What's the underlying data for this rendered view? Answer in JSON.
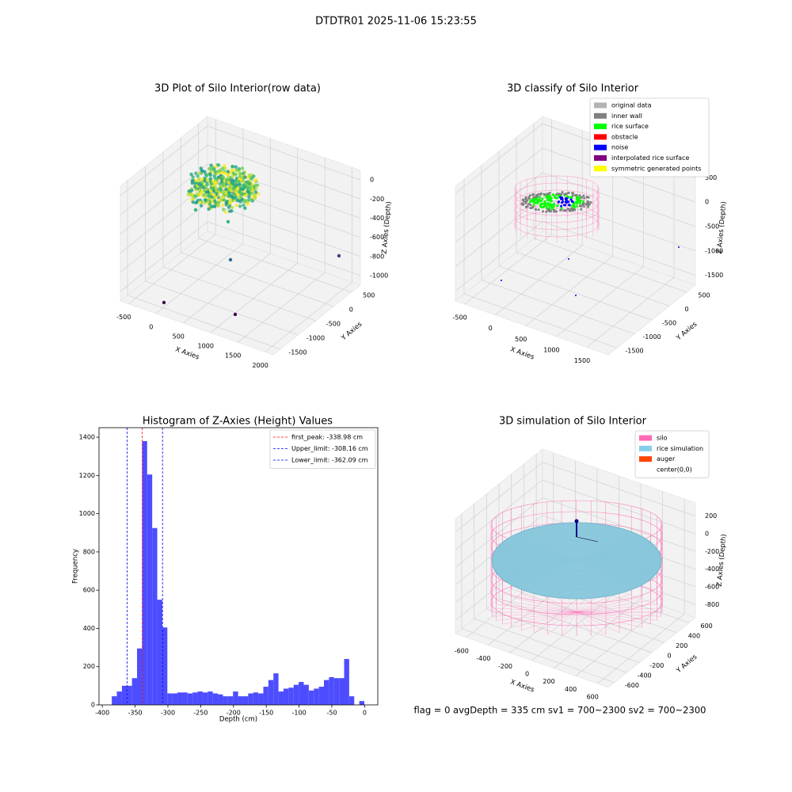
{
  "suptitle": "DTDTR01 2025-11-06 15:23:55",
  "footer": "flag = 0     avgDepth = 335 cm  sv1 = 700~2300  sv2 = 700~2300",
  "chart_data": [
    {
      "type": "scatter3d",
      "title": "3D Plot of Silo Interior(row data)",
      "xlabel": "X Axies",
      "ylabel": "Y Axies",
      "zlabel": "Z Axies (Depth)",
      "xlim": [
        -650,
        2150
      ],
      "ylim": [
        -1700,
        750
      ],
      "zlim": [
        -1100,
        100
      ],
      "xticks": [
        -500,
        0,
        500,
        1000,
        1500,
        2000
      ],
      "yticks": [
        -1500,
        -1000,
        -500,
        0,
        500
      ],
      "zticks": [
        -1000,
        -800,
        -600,
        -400,
        -200,
        0
      ]
    },
    {
      "type": "scatter3d",
      "title": "3D classify of Silo Interior",
      "xlabel": "X Axies",
      "ylabel": "Y Axies",
      "zlabel": "Z Axies (Depth)",
      "xlim": [
        -650,
        1850
      ],
      "ylim": [
        -1750,
        750
      ],
      "zlim": [
        -1700,
        650
      ],
      "xticks": [
        -500,
        0,
        500,
        1000,
        1500
      ],
      "yticks": [
        -1500,
        -1000,
        -500,
        0,
        500
      ],
      "zticks": [
        -1500,
        -1000,
        -500,
        0,
        500
      ],
      "legend": [
        {
          "label": "original data",
          "color": "#b3b3b3"
        },
        {
          "label": "inner wall",
          "color": "#808080"
        },
        {
          "label": "rice surface",
          "color": "#00ff00"
        },
        {
          "label": "obstacle",
          "color": "#ff0000"
        },
        {
          "label": "noise",
          "color": "#0000ff"
        },
        {
          "label": "interpolated rice surface",
          "color": "#800080"
        },
        {
          "label": "symmetric generated points",
          "color": "#ffff00"
        }
      ]
    },
    {
      "type": "histogram",
      "title": "Histogram of Z-Axies (Height) Values",
      "xlabel": "Depth (cm)",
      "ylabel": "Frequency",
      "color": "#4d4dff",
      "bins": [
        -385.5,
        -377.8,
        -370.1,
        -362.4,
        -354.7,
        -347.0,
        -339.3,
        -331.6,
        -323.9,
        -316.2,
        -308.5,
        -300.8,
        -293.1,
        -285.4,
        -277.7,
        -270.0,
        -262.3,
        -254.6,
        -246.9,
        -239.2,
        -231.5,
        -223.8,
        -216.1,
        -208.4,
        -200.7,
        -193.0,
        -185.3,
        -177.6,
        -169.9,
        -162.2,
        -154.5,
        -146.8,
        -139.1,
        -131.4,
        -123.7,
        -116.0,
        -108.3,
        -100.6,
        -92.9,
        -85.2,
        -77.5,
        -69.8,
        -62.1,
        -54.4,
        -46.7,
        -39.0,
        -31.3,
        -23.6,
        -15.9,
        -8.2,
        -0.5
      ],
      "values": [
        45,
        70,
        100,
        100,
        140,
        295,
        1380,
        1205,
        925,
        550,
        405,
        60,
        60,
        65,
        65,
        60,
        65,
        70,
        65,
        70,
        60,
        55,
        45,
        45,
        70,
        45,
        45,
        60,
        65,
        60,
        95,
        130,
        165,
        70,
        85,
        90,
        105,
        120,
        105,
        75,
        85,
        95,
        130,
        145,
        140,
        140,
        240,
        45,
        0,
        20
      ],
      "xlim": [
        -405,
        20
      ],
      "ylim": [
        0,
        1450
      ],
      "xticks": [
        -400,
        -350,
        -300,
        -250,
        -200,
        -150,
        -100,
        -50,
        0
      ],
      "yticks": [
        0,
        200,
        400,
        600,
        800,
        1000,
        1200,
        1400
      ],
      "lines": [
        {
          "label": "first_peak: -338.98 cm",
          "value": -338.98,
          "color": "#ff0000"
        },
        {
          "label": "Upper_limit: -308.16 cm",
          "value": -308.16,
          "color": "#0000ff"
        },
        {
          "label": "Lower_limit: -362.09 cm",
          "value": -362.09,
          "color": "#0000ff"
        }
      ]
    },
    {
      "type": "surface3d",
      "title": "3D simulation of Silo Interior",
      "xlabel": "X Axies",
      "ylabel": "Y Axies",
      "zlabel": "Z Axies (Depth)",
      "xlim": [
        -700,
        700
      ],
      "ylim": [
        -700,
        700
      ],
      "zlim": [
        -950,
        350
      ],
      "xticks": [
        -600,
        -400,
        -200,
        0,
        200,
        400,
        600
      ],
      "yticks": [
        -600,
        -400,
        -200,
        0,
        200,
        400,
        600
      ],
      "zticks": [
        -800,
        -600,
        -400,
        -200,
        0,
        200
      ],
      "legend": [
        {
          "label": "silo",
          "color": "#ff69b4"
        },
        {
          "label": "rice simulation",
          "color": "#87ceeb"
        },
        {
          "label": "auger",
          "color": "#ff4500"
        },
        {
          "label": "center(0,0)",
          "color": "#ffffff"
        }
      ]
    }
  ]
}
